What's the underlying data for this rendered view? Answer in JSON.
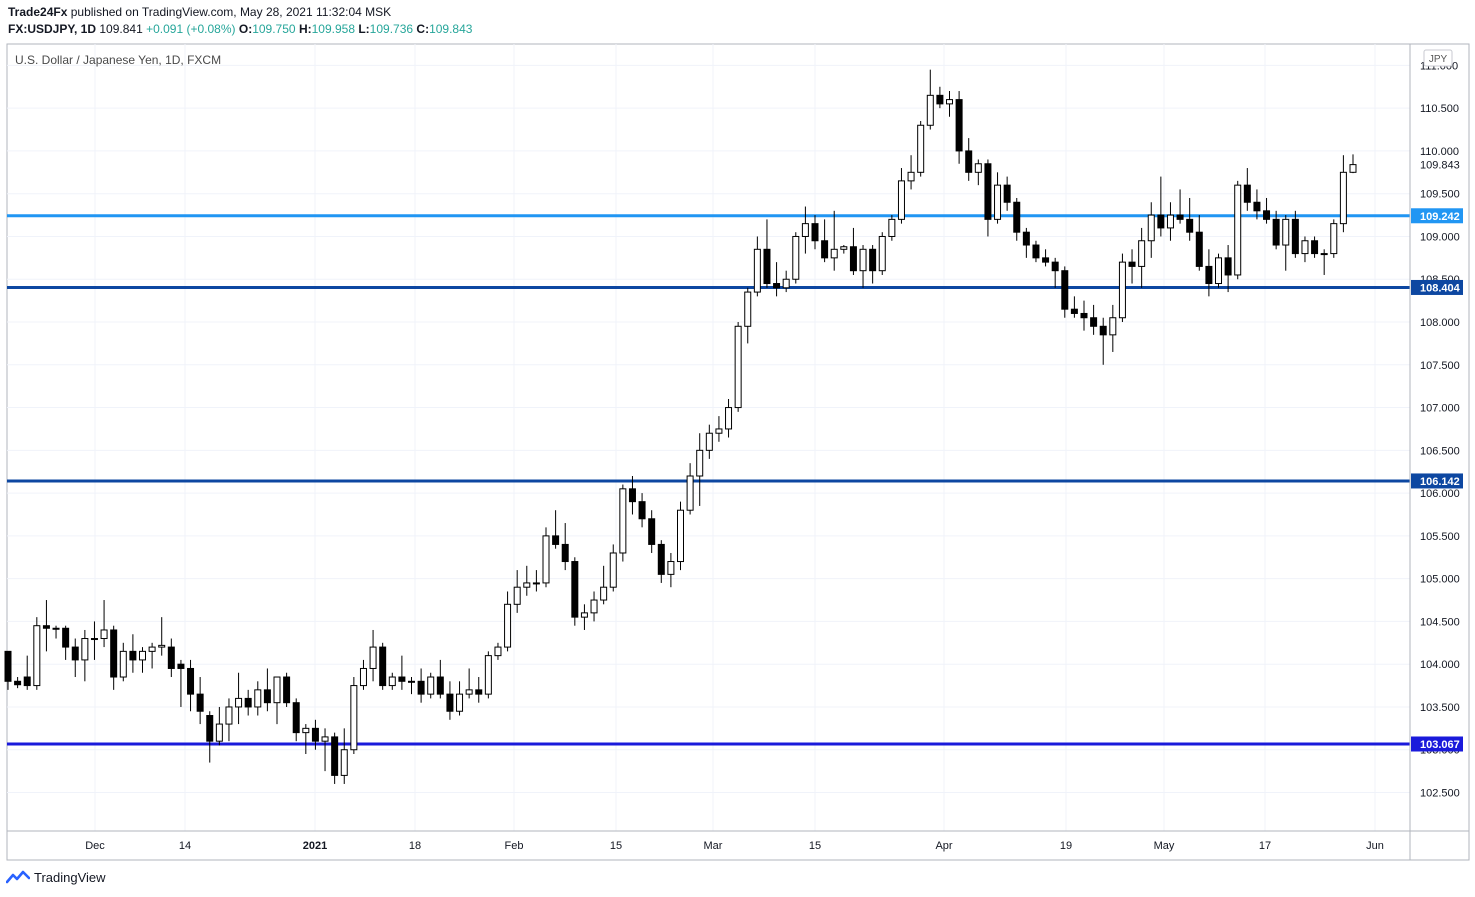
{
  "header": {
    "publisher": "Trade24Fx",
    "published_text": "published on TradingView.com, May 28, 2021 11:32:04 MSK",
    "symbol": "FX:USDJPY, 1D",
    "last": "109.841",
    "change": "+0.091 (+0.08%)",
    "o_label": "O:",
    "o_value": "109.750",
    "h_label": "H:",
    "h_value": "109.958",
    "l_label": "L:",
    "l_value": "109.736",
    "c_label": "C:",
    "c_value": "109.843"
  },
  "chart_title": "U.S. Dollar / Japanese Yen, 1D, FXCM",
  "currency_badge": "JPY",
  "footer": {
    "brand": "TradingView"
  },
  "colors": {
    "grid": "#f0f3fa",
    "axis": "#b2b5be",
    "candle_stroke": "#000000",
    "up_fill": "#ffffff",
    "down_fill": "#000000"
  },
  "chart_data": {
    "type": "candlestick",
    "title": "U.S. Dollar / Japanese Yen, 1D, FXCM",
    "ylim": [
      102.05,
      111.25
    ],
    "y_ticks": [
      "102.500",
      "103.000",
      "103.500",
      "104.000",
      "104.500",
      "105.000",
      "105.500",
      "106.000",
      "106.500",
      "107.000",
      "107.500",
      "108.000",
      "108.500",
      "109.000",
      "109.500",
      "110.000",
      "110.500",
      "111.000"
    ],
    "x_ticks": [
      {
        "label": "Dec",
        "bold": false
      },
      {
        "label": "14",
        "bold": false
      },
      {
        "label": "2021",
        "bold": true
      },
      {
        "label": "18",
        "bold": false
      },
      {
        "label": "Feb",
        "bold": false
      },
      {
        "label": "15",
        "bold": false
      },
      {
        "label": "Mar",
        "bold": false
      },
      {
        "label": "15",
        "bold": false
      },
      {
        "label": "Apr",
        "bold": false
      },
      {
        "label": "19",
        "bold": false
      },
      {
        "label": "May",
        "bold": false
      },
      {
        "label": "17",
        "bold": false
      },
      {
        "label": "Jun",
        "bold": false
      }
    ],
    "levels": [
      {
        "value": 109.242,
        "label": "109.242",
        "color": "#2196f3"
      },
      {
        "value": 108.404,
        "label": "108.404",
        "color": "#0d47a1"
      },
      {
        "value": 106.142,
        "label": "106.142",
        "color": "#0d47a1"
      },
      {
        "value": 103.067,
        "label": "103.067",
        "color": "#1a1adb"
      }
    ],
    "last_price": {
      "value": 109.843,
      "label": "109.843"
    },
    "candles": [
      {
        "o": 104.15,
        "h": 104.15,
        "l": 103.7,
        "c": 103.8
      },
      {
        "o": 103.8,
        "h": 103.85,
        "l": 103.72,
        "c": 103.76
      },
      {
        "o": 103.85,
        "h": 104.1,
        "l": 103.7,
        "c": 103.75
      },
      {
        "o": 103.75,
        "h": 104.55,
        "l": 103.7,
        "c": 104.45
      },
      {
        "o": 104.45,
        "h": 104.75,
        "l": 104.15,
        "c": 104.42
      },
      {
        "o": 104.42,
        "h": 104.45,
        "l": 104.3,
        "c": 104.42
      },
      {
        "o": 104.42,
        "h": 104.45,
        "l": 104.05,
        "c": 104.2
      },
      {
        "o": 104.2,
        "h": 104.3,
        "l": 103.85,
        "c": 104.05
      },
      {
        "o": 104.05,
        "h": 104.4,
        "l": 103.8,
        "c": 104.3
      },
      {
        "o": 104.3,
        "h": 104.5,
        "l": 104.05,
        "c": 104.3
      },
      {
        "o": 104.3,
        "h": 104.75,
        "l": 104.2,
        "c": 104.4
      },
      {
        "o": 104.4,
        "h": 104.45,
        "l": 103.7,
        "c": 103.85
      },
      {
        "o": 103.85,
        "h": 104.25,
        "l": 103.8,
        "c": 104.15
      },
      {
        "o": 104.15,
        "h": 104.35,
        "l": 103.9,
        "c": 104.05
      },
      {
        "o": 104.05,
        "h": 104.2,
        "l": 103.9,
        "c": 104.15
      },
      {
        "o": 104.15,
        "h": 104.25,
        "l": 103.95,
        "c": 104.2
      },
      {
        "o": 104.2,
        "h": 104.55,
        "l": 104.1,
        "c": 104.22
      },
      {
        "o": 104.2,
        "h": 104.3,
        "l": 103.85,
        "c": 103.95
      },
      {
        "o": 104.0,
        "h": 104.05,
        "l": 103.5,
        "c": 103.95
      },
      {
        "o": 103.95,
        "h": 104.05,
        "l": 103.45,
        "c": 103.65
      },
      {
        "o": 103.65,
        "h": 103.85,
        "l": 103.3,
        "c": 103.45
      },
      {
        "o": 103.4,
        "h": 103.45,
        "l": 102.85,
        "c": 103.1
      },
      {
        "o": 103.1,
        "h": 103.5,
        "l": 103.05,
        "c": 103.3
      },
      {
        "o": 103.3,
        "h": 103.6,
        "l": 103.1,
        "c": 103.5
      },
      {
        "o": 103.5,
        "h": 103.9,
        "l": 103.3,
        "c": 103.6
      },
      {
        "o": 103.6,
        "h": 103.7,
        "l": 103.4,
        "c": 103.5
      },
      {
        "o": 103.5,
        "h": 103.8,
        "l": 103.4,
        "c": 103.7
      },
      {
        "o": 103.7,
        "h": 103.95,
        "l": 103.45,
        "c": 103.55
      },
      {
        "o": 103.55,
        "h": 103.8,
        "l": 103.3,
        "c": 103.85
      },
      {
        "o": 103.85,
        "h": 103.9,
        "l": 103.5,
        "c": 103.55
      },
      {
        "o": 103.55,
        "h": 103.6,
        "l": 103.1,
        "c": 103.2
      },
      {
        "o": 103.2,
        "h": 103.3,
        "l": 102.95,
        "c": 103.25
      },
      {
        "o": 103.25,
        "h": 103.35,
        "l": 103.0,
        "c": 103.1
      },
      {
        "o": 103.1,
        "h": 103.25,
        "l": 102.75,
        "c": 103.15
      },
      {
        "o": 103.15,
        "h": 103.2,
        "l": 102.6,
        "c": 102.7
      },
      {
        "o": 102.7,
        "h": 103.25,
        "l": 102.6,
        "c": 103.0
      },
      {
        "o": 103.0,
        "h": 103.85,
        "l": 102.95,
        "c": 103.75
      },
      {
        "o": 103.75,
        "h": 104.05,
        "l": 103.7,
        "c": 103.95
      },
      {
        "o": 103.95,
        "h": 104.4,
        "l": 103.8,
        "c": 104.2
      },
      {
        "o": 104.2,
        "h": 104.25,
        "l": 103.7,
        "c": 103.75
      },
      {
        "o": 103.75,
        "h": 103.9,
        "l": 103.7,
        "c": 103.85
      },
      {
        "o": 103.85,
        "h": 104.1,
        "l": 103.7,
        "c": 103.8
      },
      {
        "o": 103.8,
        "h": 103.85,
        "l": 103.65,
        "c": 103.8
      },
      {
        "o": 103.8,
        "h": 103.95,
        "l": 103.55,
        "c": 103.65
      },
      {
        "o": 103.65,
        "h": 103.9,
        "l": 103.6,
        "c": 103.85
      },
      {
        "o": 103.85,
        "h": 104.05,
        "l": 103.6,
        "c": 103.65
      },
      {
        "o": 103.65,
        "h": 103.8,
        "l": 103.35,
        "c": 103.45
      },
      {
        "o": 103.45,
        "h": 103.8,
        "l": 103.4,
        "c": 103.65
      },
      {
        "o": 103.65,
        "h": 103.95,
        "l": 103.6,
        "c": 103.7
      },
      {
        "o": 103.7,
        "h": 103.85,
        "l": 103.55,
        "c": 103.65
      },
      {
        "o": 103.65,
        "h": 104.15,
        "l": 103.6,
        "c": 104.1
      },
      {
        "o": 104.1,
        "h": 104.25,
        "l": 104.05,
        "c": 104.2
      },
      {
        "o": 104.2,
        "h": 104.85,
        "l": 104.15,
        "c": 104.7
      },
      {
        "o": 104.7,
        "h": 105.1,
        "l": 104.6,
        "c": 104.9
      },
      {
        "o": 104.9,
        "h": 105.15,
        "l": 104.8,
        "c": 104.95
      },
      {
        "o": 104.95,
        "h": 105.1,
        "l": 104.85,
        "c": 104.95
      },
      {
        "o": 104.95,
        "h": 105.6,
        "l": 104.9,
        "c": 105.5
      },
      {
        "o": 105.5,
        "h": 105.8,
        "l": 105.35,
        "c": 105.4
      },
      {
        "o": 105.4,
        "h": 105.65,
        "l": 105.1,
        "c": 105.2
      },
      {
        "o": 105.2,
        "h": 105.25,
        "l": 104.45,
        "c": 104.55
      },
      {
        "o": 104.55,
        "h": 104.7,
        "l": 104.4,
        "c": 104.6
      },
      {
        "o": 104.6,
        "h": 104.85,
        "l": 104.5,
        "c": 104.75
      },
      {
        "o": 104.75,
        "h": 105.15,
        "l": 104.7,
        "c": 104.9
      },
      {
        "o": 104.9,
        "h": 105.4,
        "l": 104.85,
        "c": 105.3
      },
      {
        "o": 105.3,
        "h": 106.1,
        "l": 105.2,
        "c": 106.05
      },
      {
        "o": 106.05,
        "h": 106.2,
        "l": 105.75,
        "c": 105.9
      },
      {
        "o": 105.9,
        "h": 106.0,
        "l": 105.6,
        "c": 105.7
      },
      {
        "o": 105.7,
        "h": 105.8,
        "l": 105.3,
        "c": 105.4
      },
      {
        "o": 105.4,
        "h": 105.45,
        "l": 104.95,
        "c": 105.05
      },
      {
        "o": 105.05,
        "h": 105.3,
        "l": 104.9,
        "c": 105.2
      },
      {
        "o": 105.2,
        "h": 105.9,
        "l": 105.1,
        "c": 105.8
      },
      {
        "o": 105.8,
        "h": 106.35,
        "l": 105.75,
        "c": 106.2
      },
      {
        "o": 106.2,
        "h": 106.7,
        "l": 105.85,
        "c": 106.5
      },
      {
        "o": 106.5,
        "h": 106.8,
        "l": 106.4,
        "c": 106.7
      },
      {
        "o": 106.7,
        "h": 106.9,
        "l": 106.6,
        "c": 106.75
      },
      {
        "o": 106.75,
        "h": 107.1,
        "l": 106.65,
        "c": 107.0
      },
      {
        "o": 107.0,
        "h": 108.0,
        "l": 106.95,
        "c": 107.95
      },
      {
        "o": 107.95,
        "h": 108.4,
        "l": 107.75,
        "c": 108.35
      },
      {
        "o": 108.35,
        "h": 109.0,
        "l": 108.3,
        "c": 108.85
      },
      {
        "o": 108.85,
        "h": 109.2,
        "l": 108.4,
        "c": 108.45
      },
      {
        "o": 108.45,
        "h": 108.7,
        "l": 108.3,
        "c": 108.4
      },
      {
        "o": 108.4,
        "h": 108.6,
        "l": 108.35,
        "c": 108.5
      },
      {
        "o": 108.5,
        "h": 109.05,
        "l": 108.45,
        "c": 109.0
      },
      {
        "o": 109.0,
        "h": 109.35,
        "l": 108.8,
        "c": 109.15
      },
      {
        "o": 109.15,
        "h": 109.25,
        "l": 108.85,
        "c": 108.95
      },
      {
        "o": 108.95,
        "h": 109.2,
        "l": 108.7,
        "c": 108.75
      },
      {
        "o": 108.75,
        "h": 109.3,
        "l": 108.6,
        "c": 108.85
      },
      {
        "o": 108.85,
        "h": 108.9,
        "l": 108.8,
        "c": 108.88
      },
      {
        "o": 108.88,
        "h": 109.1,
        "l": 108.55,
        "c": 108.6
      },
      {
        "o": 108.6,
        "h": 108.9,
        "l": 108.4,
        "c": 108.85
      },
      {
        "o": 108.85,
        "h": 108.9,
        "l": 108.45,
        "c": 108.6
      },
      {
        "o": 108.6,
        "h": 109.05,
        "l": 108.55,
        "c": 109.0
      },
      {
        "o": 109.0,
        "h": 109.25,
        "l": 108.95,
        "c": 109.2
      },
      {
        "o": 109.2,
        "h": 109.8,
        "l": 109.15,
        "c": 109.65
      },
      {
        "o": 109.65,
        "h": 109.95,
        "l": 109.55,
        "c": 109.75
      },
      {
        "o": 109.75,
        "h": 110.35,
        "l": 109.7,
        "c": 110.3
      },
      {
        "o": 110.3,
        "h": 110.95,
        "l": 110.25,
        "c": 110.65
      },
      {
        "o": 110.65,
        "h": 110.75,
        "l": 110.5,
        "c": 110.55
      },
      {
        "o": 110.55,
        "h": 110.7,
        "l": 110.4,
        "c": 110.6
      },
      {
        "o": 110.6,
        "h": 110.7,
        "l": 109.85,
        "c": 110.0
      },
      {
        "o": 110.0,
        "h": 110.15,
        "l": 109.65,
        "c": 109.75
      },
      {
        "o": 109.75,
        "h": 109.9,
        "l": 109.6,
        "c": 109.85
      },
      {
        "o": 109.85,
        "h": 109.9,
        "l": 109.0,
        "c": 109.2
      },
      {
        "o": 109.2,
        "h": 109.75,
        "l": 109.15,
        "c": 109.6
      },
      {
        "o": 109.6,
        "h": 109.7,
        "l": 109.3,
        "c": 109.4
      },
      {
        "o": 109.4,
        "h": 109.45,
        "l": 108.95,
        "c": 109.05
      },
      {
        "o": 109.05,
        "h": 109.1,
        "l": 108.75,
        "c": 108.9
      },
      {
        "o": 108.9,
        "h": 108.95,
        "l": 108.7,
        "c": 108.75
      },
      {
        "o": 108.75,
        "h": 108.85,
        "l": 108.65,
        "c": 108.7
      },
      {
        "o": 108.7,
        "h": 108.75,
        "l": 108.4,
        "c": 108.6
      },
      {
        "o": 108.6,
        "h": 108.65,
        "l": 108.05,
        "c": 108.15
      },
      {
        "o": 108.15,
        "h": 108.3,
        "l": 108.05,
        "c": 108.1
      },
      {
        "o": 108.1,
        "h": 108.25,
        "l": 107.9,
        "c": 108.05
      },
      {
        "o": 108.05,
        "h": 108.2,
        "l": 107.85,
        "c": 107.95
      },
      {
        "o": 107.95,
        "h": 108.05,
        "l": 107.5,
        "c": 107.85
      },
      {
        "o": 107.85,
        "h": 108.2,
        "l": 107.65,
        "c": 108.05
      },
      {
        "o": 108.05,
        "h": 108.8,
        "l": 108.0,
        "c": 108.7
      },
      {
        "o": 108.7,
        "h": 108.85,
        "l": 108.45,
        "c": 108.65
      },
      {
        "o": 108.65,
        "h": 109.1,
        "l": 108.4,
        "c": 108.95
      },
      {
        "o": 108.95,
        "h": 109.4,
        "l": 108.75,
        "c": 109.25
      },
      {
        "o": 109.25,
        "h": 109.7,
        "l": 109.0,
        "c": 109.1
      },
      {
        "o": 109.1,
        "h": 109.4,
        "l": 108.95,
        "c": 109.25
      },
      {
        "o": 109.25,
        "h": 109.55,
        "l": 109.15,
        "c": 109.2
      },
      {
        "o": 109.2,
        "h": 109.45,
        "l": 108.95,
        "c": 109.05
      },
      {
        "o": 109.05,
        "h": 109.25,
        "l": 108.6,
        "c": 108.65
      },
      {
        "o": 108.65,
        "h": 108.85,
        "l": 108.3,
        "c": 108.45
      },
      {
        "o": 108.45,
        "h": 108.8,
        "l": 108.4,
        "c": 108.75
      },
      {
        "o": 108.75,
        "h": 108.9,
        "l": 108.35,
        "c": 108.55
      },
      {
        "o": 108.55,
        "h": 109.65,
        "l": 108.5,
        "c": 109.6
      },
      {
        "o": 109.6,
        "h": 109.8,
        "l": 109.3,
        "c": 109.4
      },
      {
        "o": 109.4,
        "h": 109.55,
        "l": 109.2,
        "c": 109.3
      },
      {
        "o": 109.3,
        "h": 109.45,
        "l": 109.15,
        "c": 109.2
      },
      {
        "o": 109.2,
        "h": 109.3,
        "l": 108.85,
        "c": 108.9
      },
      {
        "o": 108.9,
        "h": 109.25,
        "l": 108.6,
        "c": 109.2
      },
      {
        "o": 109.2,
        "h": 109.3,
        "l": 108.75,
        "c": 108.8
      },
      {
        "o": 108.8,
        "h": 109.0,
        "l": 108.7,
        "c": 108.95
      },
      {
        "o": 108.95,
        "h": 109.0,
        "l": 108.75,
        "c": 108.8
      },
      {
        "o": 108.8,
        "h": 108.85,
        "l": 108.55,
        "c": 108.8
      },
      {
        "o": 108.8,
        "h": 109.2,
        "l": 108.75,
        "c": 109.15
      },
      {
        "o": 109.15,
        "h": 109.95,
        "l": 109.05,
        "c": 109.75
      },
      {
        "o": 109.75,
        "h": 109.96,
        "l": 109.74,
        "c": 109.84
      }
    ]
  }
}
